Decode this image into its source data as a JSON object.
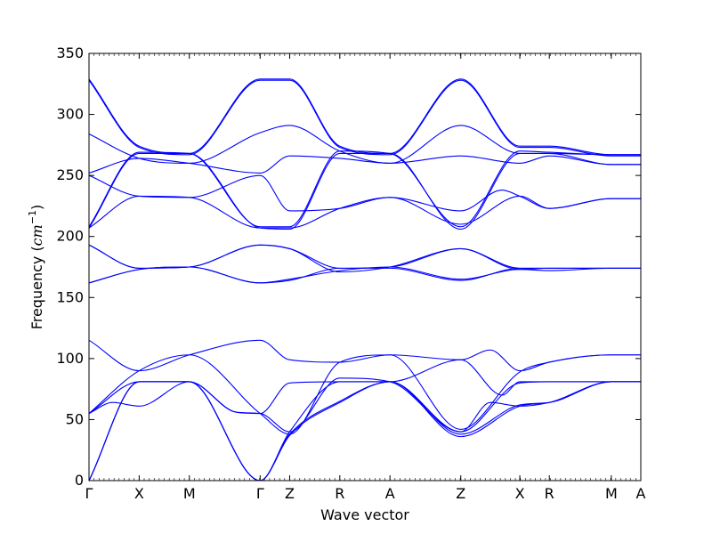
{
  "chart_data": {
    "type": "line",
    "title": "",
    "xlabel": "Wave vector",
    "ylabel": {
      "prefix": "Frequency (",
      "unit": "cm",
      "exponent": "−1",
      "suffix": ")"
    },
    "ylim": [
      0,
      350
    ],
    "yticks": [
      0,
      50,
      100,
      150,
      200,
      250,
      300,
      350
    ],
    "xlim": [
      0,
      9.35
    ],
    "grid": false,
    "legend": "none",
    "line_color": "#0000ff",
    "high_symmetry_points": [
      {
        "label": "Γ",
        "x": 0
      },
      {
        "label": "X",
        "x": 0.85
      },
      {
        "label": "M",
        "x": 1.7
      },
      {
        "label": "Γ",
        "x": 2.9
      },
      {
        "label": "Z",
        "x": 3.4
      },
      {
        "label": "R",
        "x": 4.25
      },
      {
        "label": "A",
        "x": 5.1
      },
      {
        "label": "Z",
        "x": 6.3
      },
      {
        "label": "X",
        "x": 7.3
      },
      {
        "label": "R",
        "x": 7.8
      },
      {
        "label": "M",
        "x": 8.85
      },
      {
        "label": "A",
        "x": 9.35
      }
    ],
    "series": [
      {
        "x": [
          0,
          0.85,
          1.7,
          2.9,
          3.4,
          4.25,
          5.1,
          6.3,
          7.3,
          7.8,
          8.85,
          9.35
        ],
        "y": [
          0,
          81,
          81,
          0,
          37,
          64,
          81,
          36,
          61,
          64,
          81,
          81
        ]
      },
      {
        "x": [
          0,
          0.85,
          1.7,
          2.9,
          3.4,
          4.25,
          5.1,
          6.3,
          7.3,
          7.8,
          8.85,
          9.35
        ],
        "y": [
          0,
          81,
          81,
          0,
          38,
          65,
          81,
          38,
          62,
          64,
          81,
          81
        ]
      },
      {
        "x": [
          0,
          0.85,
          1.7,
          2.9,
          3.4,
          4.25,
          5.1,
          6.3,
          7.3,
          7.8,
          8.85,
          9.35
        ],
        "y": [
          0,
          81,
          81,
          0,
          40,
          81,
          81,
          40,
          80,
          81,
          81,
          81
        ]
      },
      {
        "x": [
          0,
          0.4,
          0.85,
          1.7,
          2.5,
          2.9,
          3.4,
          4.25,
          5.1,
          6.3,
          6.8,
          7.3,
          7.8,
          8.85,
          9.35
        ],
        "y": [
          55,
          64,
          61,
          81,
          56,
          55,
          40,
          84,
          81,
          40,
          64,
          61,
          64,
          81,
          81
        ]
      },
      {
        "x": [
          0,
          0.85,
          1.7,
          2.5,
          2.9,
          3.4,
          4.25,
          5.1,
          6.3,
          7.0,
          7.3,
          7.8,
          8.85,
          9.35
        ],
        "y": [
          55,
          81,
          81,
          56,
          55,
          80,
          81,
          81,
          99,
          70,
          81,
          81,
          81,
          81
        ]
      },
      {
        "x": [
          0,
          0.85,
          1.7,
          2.9,
          3.4,
          4.25,
          5.1,
          6.3,
          6.8,
          7.3,
          7.8,
          8.85,
          9.35
        ],
        "y": [
          115,
          90,
          103,
          115,
          99,
          97,
          103,
          99,
          107,
          90,
          97,
          103,
          103
        ]
      },
      {
        "x": [
          0,
          0.85,
          1.7,
          2.9,
          3.4,
          4.25,
          5.1,
          6.3,
          7.3,
          7.8,
          8.85,
          9.35
        ],
        "y": [
          55,
          90,
          103,
          55,
          38,
          97,
          103,
          42,
          89,
          97,
          103,
          103
        ]
      },
      {
        "x": [
          0,
          0.85,
          1.7,
          2.9,
          3.4,
          4.25,
          5.1,
          6.3,
          7.3,
          7.8,
          8.85,
          9.35
        ],
        "y": [
          162,
          173,
          175,
          162,
          165,
          172,
          175,
          165,
          173,
          172,
          174,
          174
        ]
      },
      {
        "x": [
          0,
          0.85,
          1.7,
          2.9,
          3.4,
          4.25,
          5.1,
          6.3,
          7.3,
          7.8,
          8.85,
          9.35
        ],
        "y": [
          162,
          173,
          175,
          162,
          164,
          174,
          174,
          164,
          174,
          174,
          174,
          174
        ]
      },
      {
        "x": [
          0,
          0.85,
          1.7,
          2.9,
          3.4,
          4.25,
          5.1,
          6.3,
          7.3,
          7.8,
          8.85,
          9.35
        ],
        "y": [
          193,
          174,
          175,
          193,
          190,
          171,
          175,
          190,
          173,
          174,
          174,
          174
        ]
      },
      {
        "x": [
          0,
          0.85,
          1.7,
          2.9,
          3.4,
          4.25,
          5.1,
          6.3,
          7.3,
          7.8,
          8.85,
          9.35
        ],
        "y": [
          193,
          174,
          175,
          193,
          190,
          174,
          175,
          190,
          174,
          174,
          174,
          174
        ]
      },
      {
        "x": [
          0,
          0.85,
          1.7,
          2.9,
          3.4,
          4.25,
          5.1,
          6.3,
          7.3,
          7.8,
          8.85,
          9.35
        ],
        "y": [
          207,
          268,
          268,
          207,
          206,
          268,
          268,
          206,
          268,
          268,
          267,
          267
        ]
      },
      {
        "x": [
          0,
          0.85,
          1.7,
          2.9,
          3.4,
          4.25,
          5.1,
          6.3,
          7.3,
          7.8,
          8.85,
          9.35
        ],
        "y": [
          208,
          269,
          268,
          208,
          208,
          270,
          268,
          208,
          270,
          269,
          267,
          267
        ]
      },
      {
        "x": [
          0,
          0.85,
          1.7,
          2.9,
          3.4,
          4.25,
          5.1,
          6.3,
          7.3,
          7.8,
          8.85,
          9.35
        ],
        "y": [
          329,
          274,
          268,
          329,
          329,
          274,
          268,
          329,
          274,
          274,
          267,
          267
        ]
      },
      {
        "x": [
          0,
          0.85,
          1.7,
          2.9,
          3.4,
          4.25,
          5.1,
          6.3,
          7.3,
          7.8,
          8.85,
          9.35
        ],
        "y": [
          328,
          273,
          267,
          328,
          328,
          273,
          267,
          328,
          273,
          273,
          266,
          266
        ]
      },
      {
        "x": [
          0,
          0.85,
          1.7,
          2.9,
          3.4,
          4.25,
          5.1,
          6.3,
          7.3,
          7.8,
          8.85,
          9.35
        ],
        "y": [
          284,
          264,
          260,
          285,
          291,
          270,
          260,
          291,
          268,
          268,
          259,
          259
        ]
      },
      {
        "x": [
          0,
          0.85,
          1.7,
          2.9,
          3.4,
          4.25,
          5.1,
          6.3,
          7.3,
          7.8,
          8.85,
          9.35
        ],
        "y": [
          252,
          264,
          260,
          252,
          266,
          264,
          260,
          266,
          260,
          266,
          259,
          259
        ]
      },
      {
        "x": [
          0,
          0.85,
          1.7,
          2.9,
          3.4,
          4.25,
          5.1,
          6.3,
          7.0,
          7.3,
          7.8,
          8.85,
          9.35
        ],
        "y": [
          250,
          233,
          232,
          250,
          221,
          223,
          232,
          221,
          238,
          233,
          223,
          231,
          231
        ]
      },
      {
        "x": [
          0,
          0.85,
          1.7,
          2.9,
          3.4,
          4.25,
          5.1,
          6.3,
          7.3,
          7.8,
          8.85,
          9.35
        ],
        "y": [
          207,
          233,
          232,
          207,
          207,
          223,
          232,
          210,
          233,
          223,
          231,
          231
        ]
      }
    ]
  }
}
